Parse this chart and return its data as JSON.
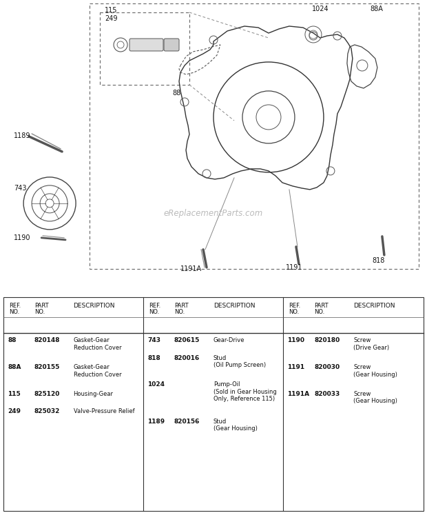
{
  "bg_color": "#ffffff",
  "watermark": "eReplacementParts.com",
  "table": {
    "col1": [
      {
        "ref": "88",
        "part": "820148",
        "desc": "Gasket-Gear\nReduction Cover"
      },
      {
        "ref": "88A",
        "part": "820155",
        "desc": "Gasket-Gear\nReduction Cover"
      },
      {
        "ref": "115",
        "part": "825120",
        "desc": "Housing-Gear"
      },
      {
        "ref": "249",
        "part": "825032",
        "desc": "Valve-Pressure Relief"
      }
    ],
    "col2": [
      {
        "ref": "743",
        "part": "820615",
        "desc": "Gear-Drive"
      },
      {
        "ref": "818",
        "part": "820016",
        "desc": "Stud\n(Oil Pump Screen)"
      },
      {
        "ref": "1024",
        "part": "",
        "desc": "Pump-Oil\n(Sold in Gear Housing\nOnly, Reference 115)"
      },
      {
        "ref": "1189",
        "part": "820156",
        "desc": "Stud\n(Gear Housing)"
      }
    ],
    "col3": [
      {
        "ref": "1190",
        "part": "820180",
        "desc": "Screw\n(Drive Gear)"
      },
      {
        "ref": "1191",
        "part": "820030",
        "desc": "Screw\n(Gear Housing)"
      },
      {
        "ref": "1191A",
        "part": "820033",
        "desc": "Screw\n(Gear Housing)"
      }
    ]
  }
}
